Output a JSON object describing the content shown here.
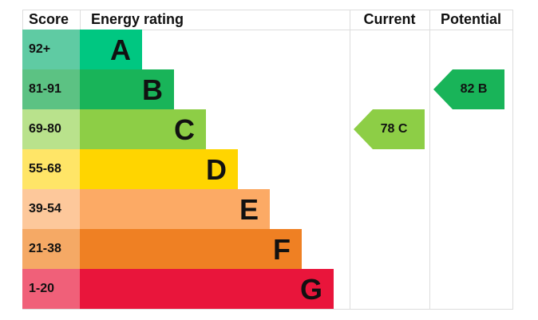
{
  "chart_data": {
    "type": "bar",
    "headers": {
      "score": "Score",
      "rating": "Energy rating",
      "current": "Current",
      "potential": "Potential"
    },
    "bands": [
      {
        "letter": "A",
        "range": "92+",
        "color": "#00c781",
        "light": "#5fcba3"
      },
      {
        "letter": "B",
        "range": "81-91",
        "color": "#19b459",
        "light": "#5cc283"
      },
      {
        "letter": "C",
        "range": "69-80",
        "color": "#8dce46",
        "light": "#b9e28c"
      },
      {
        "letter": "D",
        "range": "55-68",
        "color": "#ffd500",
        "light": "#ffe567"
      },
      {
        "letter": "E",
        "range": "39-54",
        "color": "#fcaa65",
        "light": "#fdc89b"
      },
      {
        "letter": "F",
        "range": "21-38",
        "color": "#ef8023",
        "light": "#f5a965"
      },
      {
        "letter": "G",
        "range": "1-20",
        "color": "#e9153b",
        "light": "#f06079"
      }
    ],
    "current": {
      "value": 78,
      "letter": "C",
      "label": "78  C",
      "color": "#8dce46"
    },
    "potential": {
      "value": 82,
      "letter": "B",
      "label": "82  B",
      "color": "#19b459"
    }
  }
}
